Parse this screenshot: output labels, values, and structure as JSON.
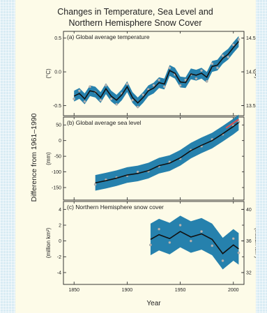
{
  "chart_data": {
    "title": "Changes in Temperature, Sea Level and Northern Hemisphere Snow Cover",
    "ylabel": "Difference from 1961–1990",
    "xlabel": "Year",
    "xticks": [
      1850,
      1900,
      1950,
      2000
    ],
    "xlim": [
      1840,
      2010
    ],
    "colors": {
      "band": "#1a7aaa",
      "line": "#111111",
      "points": "#b5b5b5",
      "trend": "#e05050",
      "background": "#fdfbe8"
    },
    "panels": [
      {
        "id": "temperature",
        "type": "line",
        "label": "(a) Global average temperature",
        "ylabel": "(°C)",
        "ylim": [
          -0.65,
          0.6
        ],
        "yticks": [
          -0.5,
          0.0,
          0.5
        ],
        "yticklabels": [
          "-0.5",
          "0.0",
          "0.5"
        ],
        "right_ylabel": "(°C)",
        "right_yticks": [
          13.5,
          14.0,
          14.5
        ],
        "right_yticklabels": [
          "13.5",
          "14.0",
          "14.5"
        ],
        "band_width": 0.08,
        "x": [
          1850,
          1855,
          1860,
          1865,
          1870,
          1875,
          1880,
          1885,
          1890,
          1895,
          1900,
          1905,
          1910,
          1915,
          1920,
          1925,
          1930,
          1935,
          1940,
          1945,
          1950,
          1955,
          1960,
          1965,
          1970,
          1975,
          1980,
          1985,
          1990,
          1995,
          2000,
          2005
        ],
        "smoothed": [
          -0.36,
          -0.32,
          -0.4,
          -0.28,
          -0.3,
          -0.38,
          -0.25,
          -0.36,
          -0.42,
          -0.34,
          -0.22,
          -0.38,
          -0.46,
          -0.38,
          -0.28,
          -0.24,
          -0.16,
          -0.18,
          0.02,
          -0.02,
          -0.15,
          -0.16,
          -0.03,
          -0.05,
          -0.02,
          -0.08,
          0.08,
          0.1,
          0.2,
          0.26,
          0.36,
          0.45
        ],
        "annual": [
          -0.4,
          -0.28,
          -0.44,
          -0.22,
          -0.3,
          -0.42,
          -0.2,
          -0.4,
          -0.48,
          -0.32,
          -0.18,
          -0.42,
          -0.52,
          -0.34,
          -0.26,
          -0.2,
          -0.12,
          -0.22,
          0.06,
          -0.04,
          -0.2,
          -0.12,
          -0.04,
          -0.1,
          0.02,
          -0.14,
          0.12,
          0.06,
          0.24,
          0.22,
          0.4,
          0.48
        ]
      },
      {
        "id": "sea_level",
        "type": "line",
        "label": "(b) Global average sea level",
        "ylabel": "(mm)",
        "ylim": [
          -190,
          75
        ],
        "yticks": [
          -150,
          -100,
          -50,
          0,
          50
        ],
        "yticklabels": [
          "-150",
          "-100",
          "-50",
          "0",
          "50"
        ],
        "band_width": 25,
        "x": [
          1870,
          1880,
          1890,
          1900,
          1910,
          1920,
          1930,
          1940,
          1950,
          1960,
          1970,
          1980,
          1990,
          2000,
          2005
        ],
        "smoothed": [
          -135,
          -128,
          -120,
          -110,
          -105,
          -96,
          -80,
          -72,
          -55,
          -32,
          -15,
          0,
          22,
          45,
          58
        ],
        "annual": [
          -140,
          -125,
          -118,
          -112,
          -100,
          -98,
          -82,
          -68,
          -58,
          -30,
          -18,
          4,
          20,
          48,
          60
        ],
        "satellite_trend": {
          "x": [
            1993,
            2005
          ],
          "values": [
            40,
            68
          ]
        }
      },
      {
        "id": "snow_cover",
        "type": "line",
        "label": "(c) Northern Hemisphere snow cover",
        "ylabel": "(million km²)",
        "ylim": [
          -5.5,
          5
        ],
        "yticks": [
          -4,
          -2,
          0,
          2,
          4
        ],
        "yticklabels": [
          "-4",
          "-2",
          "0",
          "2",
          "4"
        ],
        "right_ylabel": "(million km²)",
        "right_yticks": [
          32,
          36,
          40
        ],
        "right_yticklabels": [
          "32",
          "36",
          "40"
        ],
        "band_width": 2.0,
        "x": [
          1922,
          1930,
          1940,
          1950,
          1960,
          1970,
          1980,
          1990,
          2000,
          2005
        ],
        "smoothed": [
          0.2,
          0.8,
          0.3,
          1.2,
          0.5,
          0.9,
          0.2,
          -1.6,
          -0.5,
          -1.0
        ],
        "annual": [
          -0.5,
          1.5,
          -0.2,
          2.0,
          0.0,
          1.2,
          -0.6,
          -2.5,
          0.3,
          -1.5
        ]
      }
    ]
  }
}
